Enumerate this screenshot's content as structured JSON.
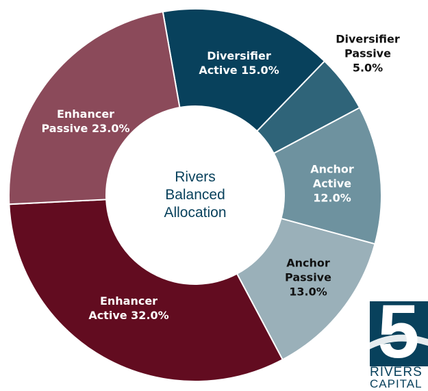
{
  "chart_data": {
    "type": "donut",
    "title": "Rivers Balanced Allocation",
    "categories": [
      "Diversifier Active",
      "Diversifier Passive",
      "Anchor Active",
      "Anchor Passive",
      "Enhancer Active",
      "Enhancer Passive"
    ],
    "values": [
      15,
      5,
      12,
      13,
      32,
      23
    ],
    "value_labels": [
      "15.0%",
      "5.0%",
      "12.0%",
      "13.0%",
      "32.0%",
      "23.0%"
    ],
    "colors": [
      "#08415c",
      "#2f6479",
      "#6e929f",
      "#9ab0b9",
      "#620c20",
      "#8b4a5a"
    ]
  },
  "logo": {
    "number": "5",
    "line1": "RIVERS",
    "line2": "CAPITAL"
  }
}
